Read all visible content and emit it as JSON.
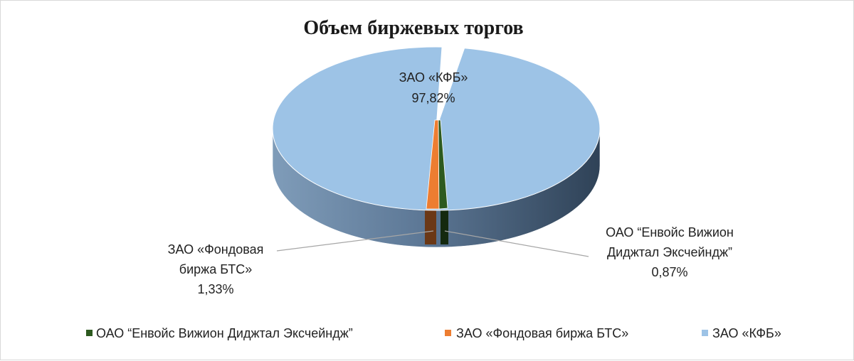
{
  "chart_data": {
    "type": "pie",
    "title": "Объем биржевых торгов",
    "legend_position": "bottom",
    "slices": [
      {
        "name": "ОАО “Енвойс Вижион Диджтал Эксчейндж”",
        "label_lines": [
          "ОАО “Енвойс Вижион",
          "Диджтал Эксчейндж”"
        ],
        "value": 0.87,
        "value_label": "0,87%",
        "color": "#2d5a1f"
      },
      {
        "name": "ЗАО «Фондовая биржа БТС»",
        "label_lines": [
          "ЗАО «Фондовая",
          "биржа БТС»"
        ],
        "value": 1.33,
        "value_label": "1,33%",
        "color": "#ed7d31"
      },
      {
        "name": "ЗАО «КФБ»",
        "label_lines": [
          "ЗАО «КФБ»"
        ],
        "value": 97.82,
        "value_label": "97,82%",
        "color": "#9dc3e6"
      }
    ]
  }
}
